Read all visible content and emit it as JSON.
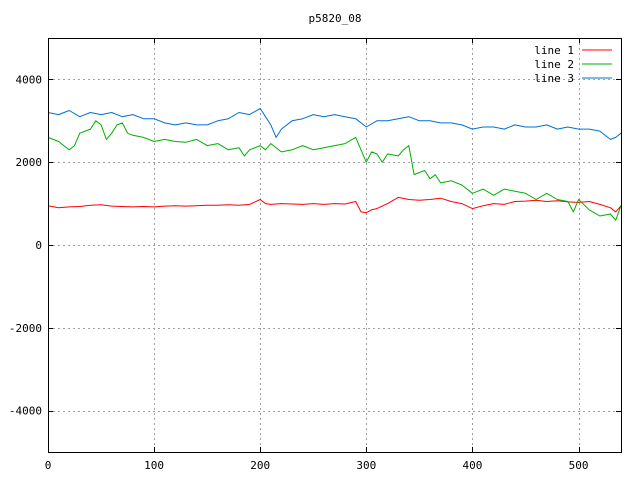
{
  "chart_data": {
    "type": "line",
    "title": "p5820_08",
    "xlabel": "",
    "ylabel": "",
    "xlim": [
      0,
      540
    ],
    "ylim": [
      -5000,
      5000
    ],
    "x_ticks": [
      0,
      100,
      200,
      300,
      400,
      500
    ],
    "y_ticks": [
      -4000,
      -2000,
      0,
      2000,
      4000
    ],
    "grid": true,
    "legend_position": "top-right",
    "series": [
      {
        "name": "line 1",
        "color": "#ff0000",
        "points": [
          [
            0,
            950
          ],
          [
            10,
            900
          ],
          [
            20,
            920
          ],
          [
            30,
            930
          ],
          [
            40,
            960
          ],
          [
            50,
            970
          ],
          [
            60,
            940
          ],
          [
            70,
            930
          ],
          [
            80,
            920
          ],
          [
            90,
            930
          ],
          [
            100,
            920
          ],
          [
            110,
            940
          ],
          [
            120,
            950
          ],
          [
            130,
            940
          ],
          [
            140,
            950
          ],
          [
            150,
            960
          ],
          [
            160,
            960
          ],
          [
            170,
            970
          ],
          [
            180,
            960
          ],
          [
            190,
            980
          ],
          [
            200,
            1100
          ],
          [
            205,
            1000
          ],
          [
            210,
            980
          ],
          [
            220,
            1000
          ],
          [
            230,
            990
          ],
          [
            240,
            980
          ],
          [
            250,
            1000
          ],
          [
            260,
            980
          ],
          [
            270,
            1000
          ],
          [
            280,
            990
          ],
          [
            290,
            1050
          ],
          [
            295,
            800
          ],
          [
            300,
            780
          ],
          [
            305,
            850
          ],
          [
            310,
            880
          ],
          [
            320,
            1000
          ],
          [
            330,
            1150
          ],
          [
            340,
            1100
          ],
          [
            350,
            1080
          ],
          [
            360,
            1100
          ],
          [
            370,
            1130
          ],
          [
            380,
            1050
          ],
          [
            390,
            1000
          ],
          [
            400,
            880
          ],
          [
            410,
            950
          ],
          [
            420,
            1000
          ],
          [
            430,
            980
          ],
          [
            440,
            1050
          ],
          [
            450,
            1060
          ],
          [
            460,
            1080
          ],
          [
            470,
            1050
          ],
          [
            480,
            1070
          ],
          [
            490,
            1040
          ],
          [
            500,
            1030
          ],
          [
            510,
            1050
          ],
          [
            520,
            980
          ],
          [
            530,
            900
          ],
          [
            535,
            800
          ],
          [
            540,
            950
          ]
        ]
      },
      {
        "name": "line 2",
        "color": "#00b000",
        "points": [
          [
            0,
            2600
          ],
          [
            10,
            2500
          ],
          [
            20,
            2300
          ],
          [
            25,
            2400
          ],
          [
            30,
            2700
          ],
          [
            40,
            2800
          ],
          [
            45,
            3000
          ],
          [
            50,
            2900
          ],
          [
            55,
            2550
          ],
          [
            60,
            2700
          ],
          [
            65,
            2900
          ],
          [
            70,
            2950
          ],
          [
            75,
            2700
          ],
          [
            80,
            2650
          ],
          [
            90,
            2600
          ],
          [
            100,
            2500
          ],
          [
            110,
            2550
          ],
          [
            120,
            2500
          ],
          [
            130,
            2480
          ],
          [
            140,
            2550
          ],
          [
            150,
            2400
          ],
          [
            160,
            2450
          ],
          [
            170,
            2300
          ],
          [
            180,
            2350
          ],
          [
            185,
            2150
          ],
          [
            190,
            2300
          ],
          [
            200,
            2400
          ],
          [
            205,
            2300
          ],
          [
            210,
            2450
          ],
          [
            220,
            2250
          ],
          [
            230,
            2300
          ],
          [
            240,
            2400
          ],
          [
            250,
            2300
          ],
          [
            260,
            2350
          ],
          [
            270,
            2400
          ],
          [
            280,
            2450
          ],
          [
            290,
            2600
          ],
          [
            295,
            2300
          ],
          [
            300,
            2000
          ],
          [
            305,
            2250
          ],
          [
            310,
            2200
          ],
          [
            315,
            2000
          ],
          [
            320,
            2200
          ],
          [
            330,
            2150
          ],
          [
            335,
            2300
          ],
          [
            340,
            2400
          ],
          [
            345,
            1700
          ],
          [
            350,
            1750
          ],
          [
            355,
            1800
          ],
          [
            360,
            1600
          ],
          [
            365,
            1700
          ],
          [
            370,
            1500
          ],
          [
            380,
            1550
          ],
          [
            390,
            1450
          ],
          [
            400,
            1250
          ],
          [
            410,
            1350
          ],
          [
            420,
            1200
          ],
          [
            430,
            1350
          ],
          [
            440,
            1300
          ],
          [
            450,
            1250
          ],
          [
            460,
            1100
          ],
          [
            470,
            1250
          ],
          [
            480,
            1100
          ],
          [
            490,
            1050
          ],
          [
            495,
            800
          ],
          [
            500,
            1100
          ],
          [
            510,
            850
          ],
          [
            520,
            700
          ],
          [
            530,
            750
          ],
          [
            535,
            600
          ],
          [
            540,
            950
          ]
        ]
      },
      {
        "name": "line 3",
        "color": "#0070d0",
        "points": [
          [
            0,
            3200
          ],
          [
            10,
            3150
          ],
          [
            20,
            3250
          ],
          [
            30,
            3100
          ],
          [
            40,
            3200
          ],
          [
            50,
            3150
          ],
          [
            60,
            3200
          ],
          [
            70,
            3100
          ],
          [
            80,
            3150
          ],
          [
            90,
            3050
          ],
          [
            100,
            3050
          ],
          [
            110,
            2950
          ],
          [
            120,
            2900
          ],
          [
            130,
            2950
          ],
          [
            140,
            2900
          ],
          [
            150,
            2900
          ],
          [
            160,
            3000
          ],
          [
            170,
            3050
          ],
          [
            180,
            3200
          ],
          [
            190,
            3150
          ],
          [
            200,
            3300
          ],
          [
            205,
            3100
          ],
          [
            210,
            2900
          ],
          [
            215,
            2600
          ],
          [
            220,
            2800
          ],
          [
            230,
            3000
          ],
          [
            240,
            3050
          ],
          [
            250,
            3150
          ],
          [
            260,
            3100
          ],
          [
            270,
            3150
          ],
          [
            280,
            3100
          ],
          [
            290,
            3050
          ],
          [
            300,
            2850
          ],
          [
            310,
            3000
          ],
          [
            320,
            3000
          ],
          [
            330,
            3050
          ],
          [
            340,
            3100
          ],
          [
            350,
            3000
          ],
          [
            360,
            3000
          ],
          [
            370,
            2950
          ],
          [
            380,
            2950
          ],
          [
            390,
            2900
          ],
          [
            400,
            2800
          ],
          [
            410,
            2850
          ],
          [
            420,
            2850
          ],
          [
            430,
            2800
          ],
          [
            440,
            2900
          ],
          [
            450,
            2850
          ],
          [
            460,
            2850
          ],
          [
            470,
            2900
          ],
          [
            480,
            2800
          ],
          [
            490,
            2850
          ],
          [
            500,
            2800
          ],
          [
            510,
            2800
          ],
          [
            520,
            2750
          ],
          [
            530,
            2550
          ],
          [
            535,
            2600
          ],
          [
            540,
            2700
          ]
        ]
      }
    ]
  }
}
